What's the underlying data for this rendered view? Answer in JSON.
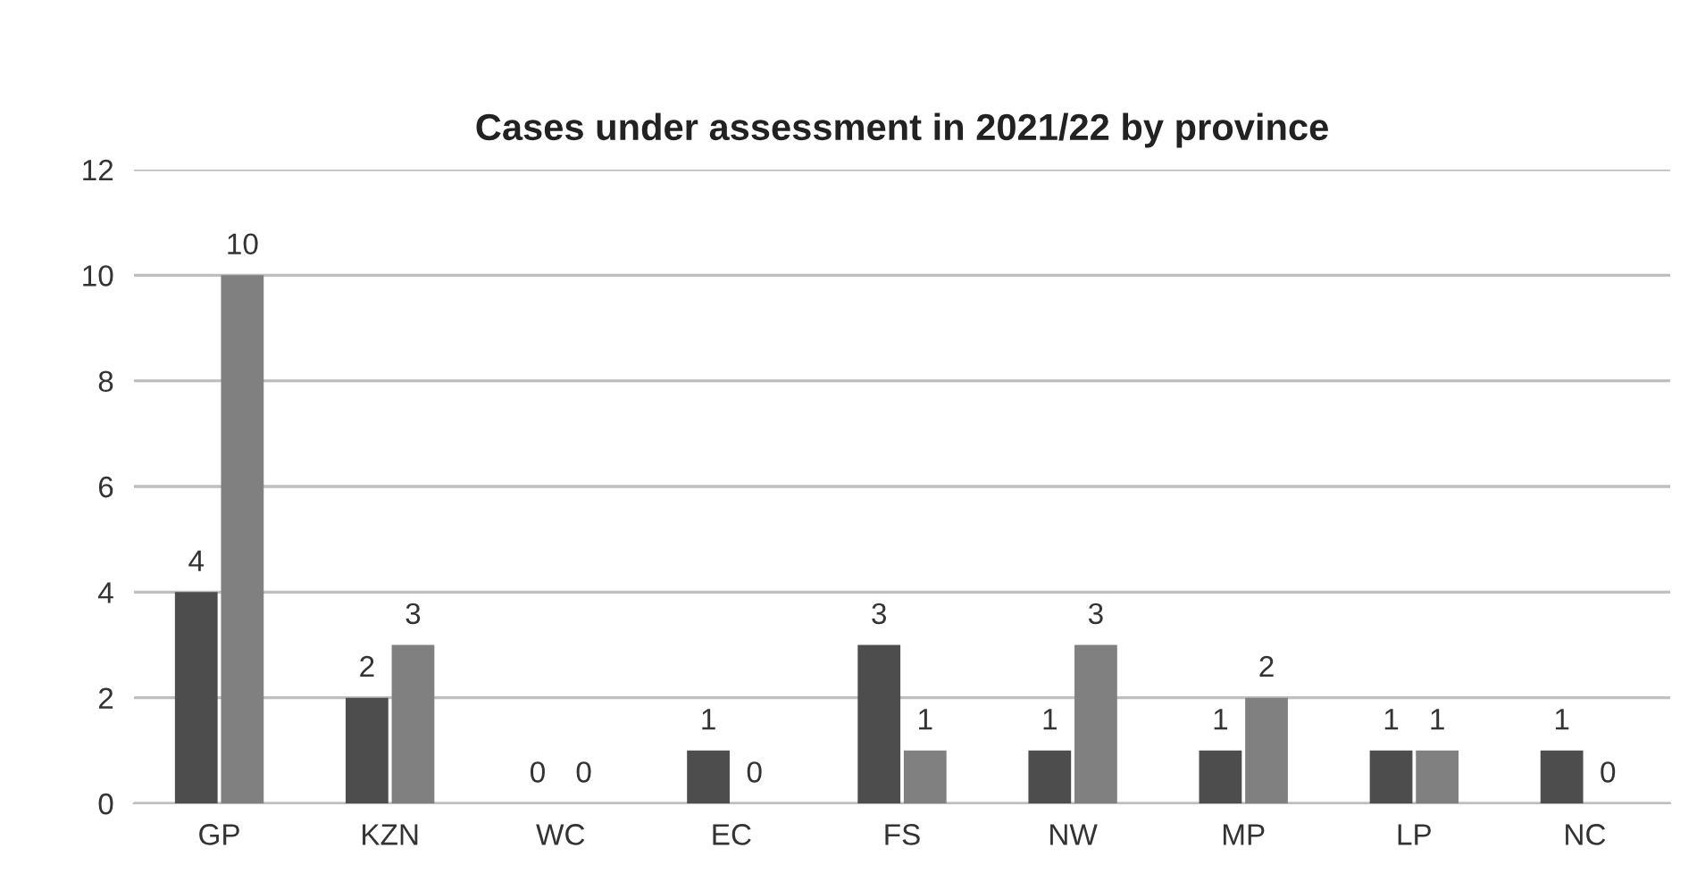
{
  "chart_data": {
    "type": "bar",
    "title": "Cases under assessment in 2021/22 by province",
    "categories": [
      "GP",
      "KZN",
      "WC",
      "EC",
      "FS",
      "NW",
      "MP",
      "LP",
      "NC"
    ],
    "series": [
      {
        "color": "#4d4d4d",
        "values": [
          4,
          2,
          0,
          1,
          3,
          1,
          1,
          1,
          1
        ]
      },
      {
        "color": "#808080",
        "values": [
          10,
          3,
          0,
          0,
          1,
          3,
          2,
          1,
          0
        ]
      }
    ],
    "ylim": [
      0,
      12
    ],
    "yticks": [
      0,
      2,
      4,
      6,
      8,
      10,
      12
    ],
    "grid": "y",
    "data_labels": true,
    "legend": false
  }
}
